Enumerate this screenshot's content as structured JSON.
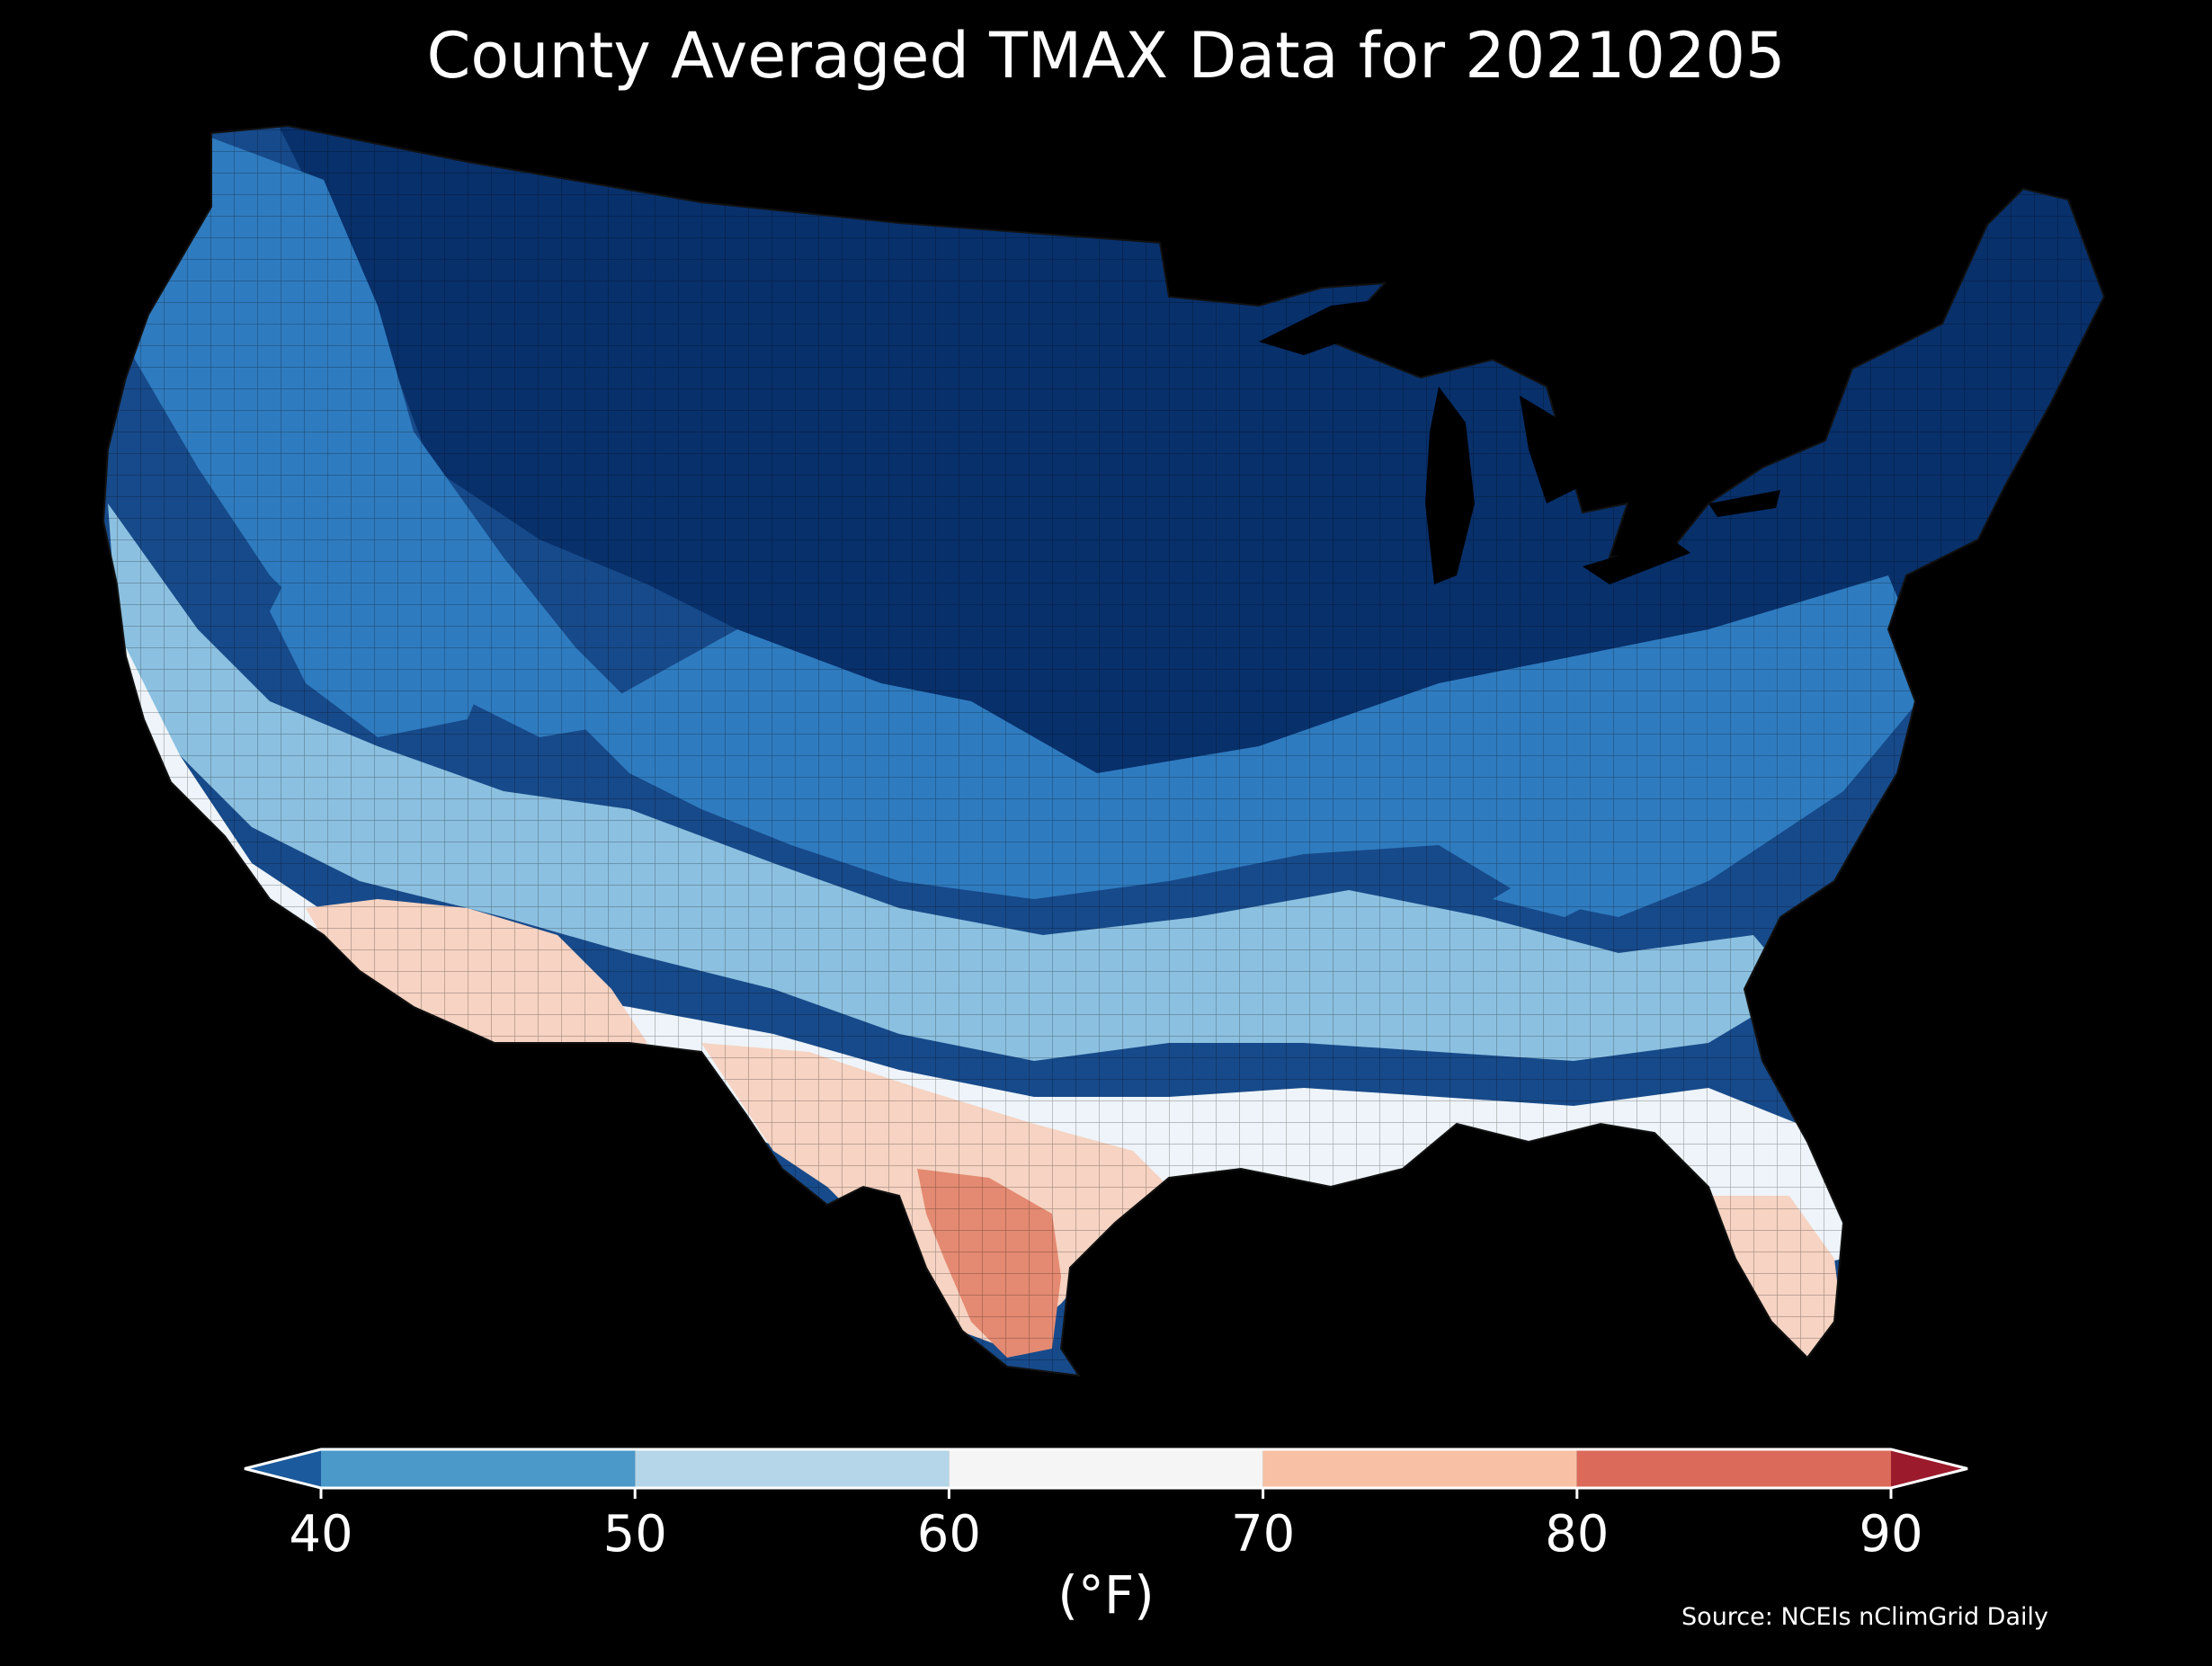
{
  "title": "County Averaged TMAX Data for 20210205",
  "source": "Source: NCEIs nClimGrid Daily",
  "colorbar": {
    "unit_label": "(°F)",
    "ticks": [
      "40",
      "50",
      "60",
      "70",
      "80",
      "90"
    ],
    "under_color": "#1b5a9c",
    "over_color": "#9b1b2c",
    "bins": [
      {
        "min": 40,
        "max": 50,
        "color": "#4b99c9"
      },
      {
        "min": 50,
        "max": 60,
        "color": "#b4d6e8"
      },
      {
        "min": 60,
        "max": 70,
        "color": "#f5f5f5"
      },
      {
        "min": 70,
        "max": 80,
        "color": "#f8c0a4"
      },
      {
        "min": 80,
        "max": 90,
        "color": "#dc6a5a"
      }
    ]
  },
  "map": {
    "background": "#000000",
    "region": "Contiguous United States counties",
    "colors": {
      "below_40": "#08306b",
      "cold": "#174a8a",
      "cool": "#2f7bbf",
      "mild": "#8cc0e0",
      "neutral": "#eef4f9",
      "warm": "#f6d3c2",
      "hot": "#e48a72",
      "water": "#000000"
    }
  }
}
